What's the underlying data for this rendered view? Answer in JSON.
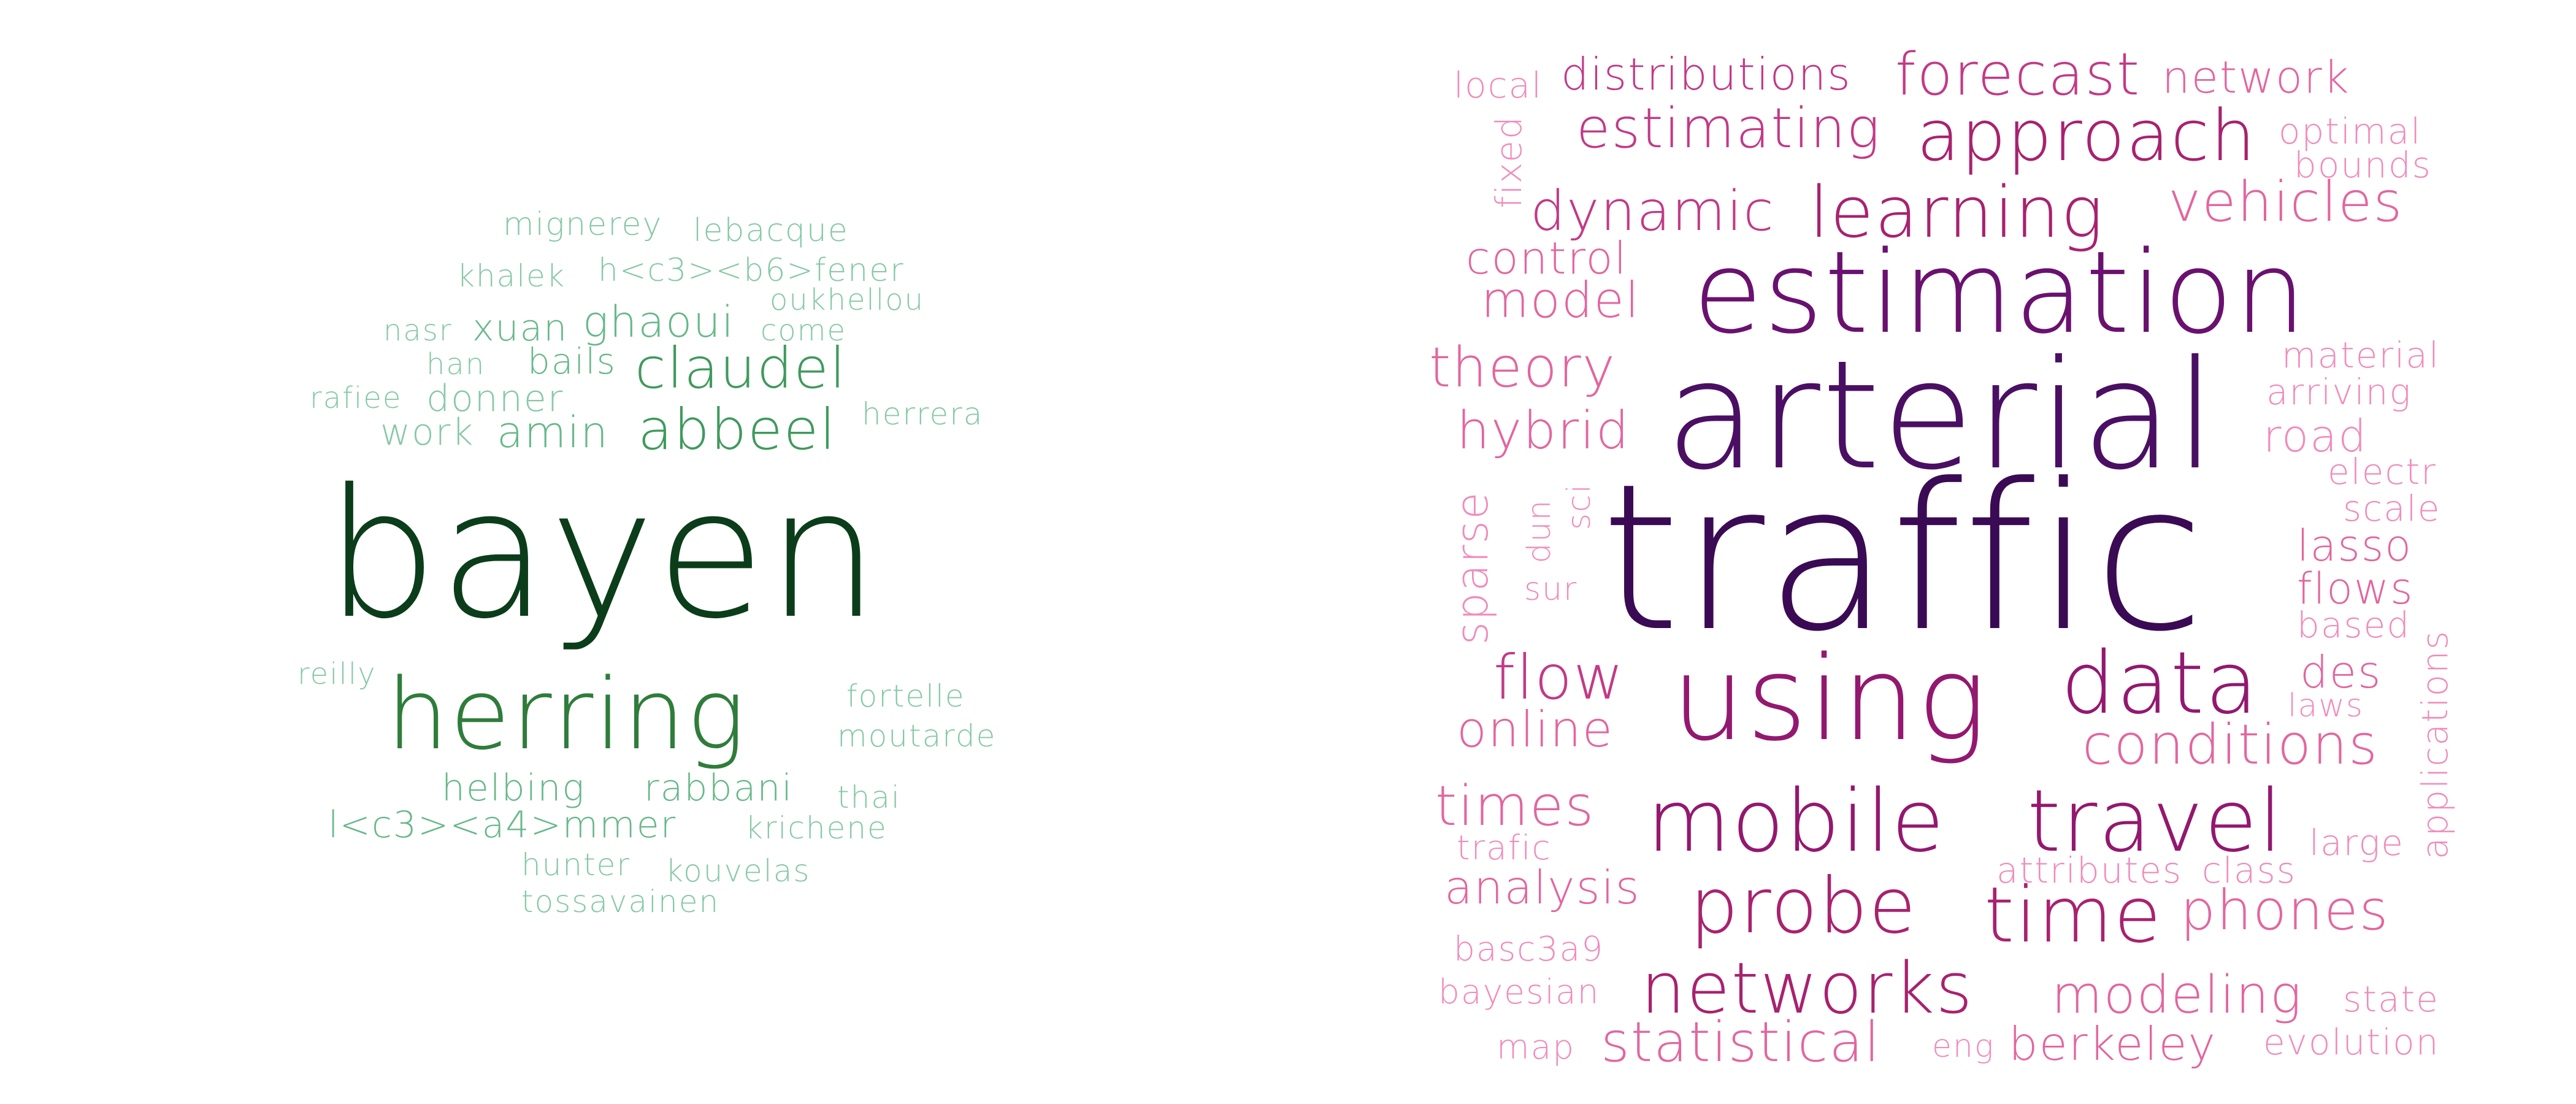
{
  "clouds": [
    {
      "name": "authors",
      "colors": [
        "#0b3d1a",
        "#2e7d3a",
        "#3f9a5c",
        "#67b88a",
        "#86c9a6"
      ],
      "words": [
        "bayen",
        "herring",
        "abbeel",
        "claudel",
        "amin",
        "ghaoui",
        "xuan",
        "work",
        "donner",
        "bails",
        "mignerey",
        "lebacque",
        "khalek",
        "h<c3><b6>fener",
        "oukhellou",
        "nasr",
        "come",
        "han",
        "rafiee",
        "herrera",
        "reilly",
        "fortelle",
        "moutarde",
        "helbing",
        "rabbani",
        "thai",
        "l<c3><a4>mmer",
        "krichene",
        "hunter",
        "kouvelas",
        "tossavainen"
      ]
    },
    {
      "name": "title-terms",
      "colors": [
        "#3b0a54",
        "#6a1170",
        "#93186f",
        "#c23a86",
        "#e2669f",
        "#f08cbc"
      ],
      "words": [
        "traffic",
        "arterial",
        "estimation",
        "using",
        "mobile",
        "travel",
        "data",
        "probe",
        "time",
        "networks",
        "learning",
        "approach",
        "estimating",
        "forecast",
        "distributions",
        "network",
        "vehicles",
        "dynamic",
        "model",
        "control",
        "theory",
        "hybrid",
        "flow",
        "online",
        "conditions",
        "phones",
        "modeling",
        "statistical",
        "berkeley",
        "times",
        "analysis",
        "road",
        "material",
        "arriving",
        "optimal",
        "bounds",
        "local",
        "fixed",
        "sparse",
        "dun",
        "sci",
        "sur",
        "electr",
        "scale",
        "lasso",
        "flows",
        "based",
        "des",
        "laws",
        "applications",
        "trafic",
        "large",
        "attributes",
        "class",
        "basc3a9",
        "bayesian",
        "map",
        "eng",
        "state",
        "evolution"
      ]
    }
  ]
}
